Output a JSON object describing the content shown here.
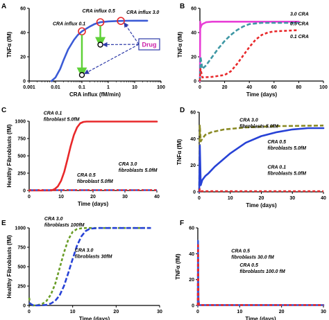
{
  "figure": {
    "background": "#ffffff"
  },
  "chart_data": [
    {
      "panel": "A",
      "type": "line",
      "xscale": "log",
      "xlim": [
        0.001,
        100
      ],
      "ylim": [
        0,
        60
      ],
      "xticks": [
        "0.001",
        "0.01",
        "0.1",
        "1",
        "10",
        "100"
      ],
      "yticks": [
        "0",
        "20",
        "40",
        "60"
      ],
      "xlabel": "CRA influx (fM/min)",
      "ylabel": "TNFα (fM)",
      "series": [
        {
          "color": "#3b5bd6",
          "x": [
            0.007,
            0.01,
            0.015,
            0.02,
            0.03,
            0.05,
            0.07,
            0.1,
            0.2,
            0.3,
            0.5,
            1,
            2,
            3,
            5,
            10,
            30
          ],
          "y": [
            0,
            3,
            10,
            17,
            26,
            34,
            38,
            41,
            45,
            47,
            48.5,
            49.2,
            49.5,
            49.6,
            49.7,
            49.8,
            49.8
          ]
        }
      ],
      "markers": [
        {
          "x": 0.1,
          "y": 41,
          "color": "#e8282a",
          "label": "CRA influx 0.1"
        },
        {
          "x": 0.5,
          "y": 48.5,
          "color": "#e8282a",
          "label": "CRA influx 0.5"
        },
        {
          "x": 3,
          "y": 49.6,
          "color": "#e8282a",
          "label": "CRA influx 3.0"
        }
      ],
      "drug_points": [
        {
          "x": 0.1,
          "y": 5
        },
        {
          "x": 0.5,
          "y": 30
        }
      ],
      "green_arrows": [
        {
          "x": 0.1,
          "y_from": 41,
          "y_to": 7
        },
        {
          "x": 0.5,
          "y_from": 48.5,
          "y_to": 32
        }
      ],
      "drug_label": "Drug"
    },
    {
      "panel": "B",
      "type": "line",
      "xlim": [
        0,
        100
      ],
      "ylim": [
        0,
        60
      ],
      "xticks": [
        "0",
        "20",
        "40",
        "60",
        "80",
        "100"
      ],
      "yticks": [
        "0",
        "20",
        "40",
        "60"
      ],
      "xlabel": "Time (days)",
      "ylabel": "TNFα (fM)",
      "series": [
        {
          "name": "3.0 CRA",
          "color": "#e83fd6",
          "dash": "",
          "x": [
            0,
            0.3,
            0.6,
            1,
            2,
            5,
            10,
            20,
            40,
            60,
            80
          ],
          "y": [
            0,
            49,
            44,
            45.5,
            47,
            48.5,
            49,
            49,
            49,
            49,
            49
          ]
        },
        {
          "name": "0.5 CRA",
          "color": "#3e97a4",
          "dash": "6,3",
          "x": [
            0,
            0.5,
            2,
            5,
            10,
            15,
            20,
            25,
            30,
            35,
            40,
            50,
            60,
            80
          ],
          "y": [
            0,
            20,
            10,
            13,
            20,
            27,
            33,
            38,
            42,
            45,
            47,
            48,
            48,
            48
          ]
        },
        {
          "name": "0.1 CRA",
          "color": "#e8282a",
          "dash": "4,3",
          "x": [
            0,
            0.5,
            2,
            10,
            20,
            25,
            30,
            35,
            40,
            45,
            50,
            55,
            60,
            70,
            80
          ],
          "y": [
            0,
            10,
            3,
            3.5,
            5,
            8,
            14,
            21,
            28,
            34,
            38,
            40,
            41,
            41.5,
            42
          ]
        }
      ]
    },
    {
      "panel": "C",
      "type": "line",
      "xlim": [
        0,
        40
      ],
      "ylim": [
        0,
        1000
      ],
      "xticks": [
        "0",
        "10",
        "20",
        "30",
        "40"
      ],
      "yticks": [
        "0",
        "250",
        "500",
        "750",
        "1000"
      ],
      "xlabel": "Time (days)",
      "ylabel": "Healthy Fibroblasts (fM)",
      "series": [
        {
          "color": "#e8282a",
          "dash": "",
          "x": [
            0,
            7,
            8,
            9,
            10,
            11,
            12,
            13,
            14,
            15,
            16,
            17,
            18,
            20,
            40
          ],
          "y": [
            0,
            0,
            20,
            60,
            140,
            270,
            450,
            640,
            800,
            910,
            970,
            990,
            995,
            995,
            995
          ]
        },
        {
          "color": "#3b5bd6",
          "dash": "6,3",
          "x": [
            0,
            40
          ],
          "y": [
            5,
            5
          ]
        },
        {
          "color": "#e8282a",
          "dash": "3,3",
          "x": [
            0,
            40
          ],
          "y": [
            5,
            5
          ]
        }
      ],
      "annotations": [
        {
          "lines": [
            "CRA 0.1",
            "fibroblast 5.0fM"
          ],
          "x": 4.5,
          "y": 1095
        },
        {
          "lines": [
            "CRA 3.0",
            "fibroblasts 5.0fM"
          ],
          "x": 28,
          "y": 360
        },
        {
          "lines": [
            "CRA 0.5",
            "fibroblast 5.0fM"
          ],
          "x": 15,
          "y": 200
        }
      ]
    },
    {
      "panel": "D",
      "type": "line",
      "xlim": [
        0,
        40
      ],
      "ylim": [
        0,
        60
      ],
      "xticks": [
        "0",
        "10",
        "20",
        "30",
        "40"
      ],
      "yticks": [
        "0",
        "20",
        "40",
        "60"
      ],
      "xlabel": "Time (days)",
      "ylabel": "TNFα (fM)",
      "series": [
        {
          "color": "#8a8a24",
          "dash": "6,3",
          "x": [
            0,
            0.2,
            0.5,
            1,
            2,
            4,
            8,
            15,
            25,
            40
          ],
          "y": [
            0,
            50,
            38,
            40,
            43,
            45,
            47,
            48.5,
            49.5,
            50
          ]
        },
        {
          "color": "#2742d6",
          "dash": "",
          "x": [
            0,
            0.2,
            0.5,
            1,
            2,
            3,
            5,
            10,
            15,
            20,
            25,
            30,
            35,
            40
          ],
          "y": [
            0,
            35,
            5,
            9,
            12,
            14,
            19,
            29,
            37,
            42,
            45,
            47,
            48,
            48
          ]
        },
        {
          "color": "#e8282a",
          "dash": "4,3",
          "x": [
            0,
            0.2,
            0.5,
            1,
            40
          ],
          "y": [
            0,
            2,
            0.5,
            0.5,
            0.5
          ]
        }
      ],
      "annotations": [
        {
          "lines": [
            "CRA 3.0",
            "fibroblasts 5.0fM"
          ],
          "x": 13,
          "y": 53
        },
        {
          "lines": [
            "CRA 0.5",
            "fibroblasts 5.0fM"
          ],
          "x": 22,
          "y": 36.5
        },
        {
          "lines": [
            "CRA 0.1",
            "fibroblasts 5.0fM"
          ],
          "x": 22,
          "y": 17.5
        }
      ]
    },
    {
      "panel": "E",
      "type": "line",
      "xlim": [
        0,
        30
      ],
      "ylim": [
        0,
        1000
      ],
      "xticks": [
        "0",
        "10",
        "20",
        "30"
      ],
      "yticks": [
        "0",
        "250",
        "500",
        "750",
        "1000"
      ],
      "xlabel": "Time (days)",
      "ylabel": "Healthy Fibroblasts (fM)",
      "series": [
        {
          "color": "#6a9d28",
          "dash": "4,3",
          "x": [
            0,
            0.3,
            1,
            2,
            3,
            4,
            5,
            6,
            7,
            8,
            9,
            10,
            11,
            12,
            13,
            15,
            28
          ],
          "y": [
            100,
            0,
            0,
            5,
            20,
            60,
            140,
            280,
            480,
            680,
            850,
            950,
            985,
            995,
            998,
            998,
            998
          ]
        },
        {
          "color": "#2742d6",
          "dash": "7,3",
          "x": [
            0,
            1,
            3,
            4,
            5,
            6,
            7,
            8,
            9,
            10,
            11,
            12,
            13,
            14,
            16,
            28
          ],
          "y": [
            30,
            0,
            2,
            8,
            25,
            60,
            130,
            250,
            420,
            600,
            770,
            890,
            960,
            990,
            998,
            998
          ]
        }
      ],
      "annotations": [
        {
          "lines": [
            "CRA 3.0",
            "fibroblasts 100fM"
          ],
          "x": 3.5,
          "y": 1100
        },
        {
          "lines": [
            "CRA 3.0",
            "fibroblasts 30fM"
          ],
          "x": 10.5,
          "y": 690
        }
      ]
    },
    {
      "panel": "F",
      "type": "line",
      "xlim": [
        0,
        30
      ],
      "ylim": [
        0,
        60
      ],
      "xticks": [
        "0",
        "10",
        "20",
        "30"
      ],
      "yticks": [
        "0",
        "20",
        "40",
        "60"
      ],
      "xlabel": "Time (days)",
      "ylabel": "TNFα (fM)",
      "series": [
        {
          "color": "#3b5bd6",
          "dash": "",
          "x": [
            0,
            0.05,
            0.15,
            0.3,
            30
          ],
          "y": [
            0,
            50,
            5,
            0.3,
            0.3
          ]
        },
        {
          "color": "#e8282a",
          "dash": "4,3",
          "x": [
            0,
            0.05,
            0.15,
            0.3,
            30
          ],
          "y": [
            0,
            48,
            4,
            0.3,
            0.3
          ]
        }
      ],
      "annotations": [
        {
          "lines": [
            "CRA 0.5",
            "fibroblasts 30.0 fM"
          ],
          "x": 8,
          "y": 41
        },
        {
          "lines": [
            "CRA 0.5",
            "fibroblasts 100.0 fM"
          ],
          "x": 10,
          "y": 30
        }
      ]
    }
  ]
}
